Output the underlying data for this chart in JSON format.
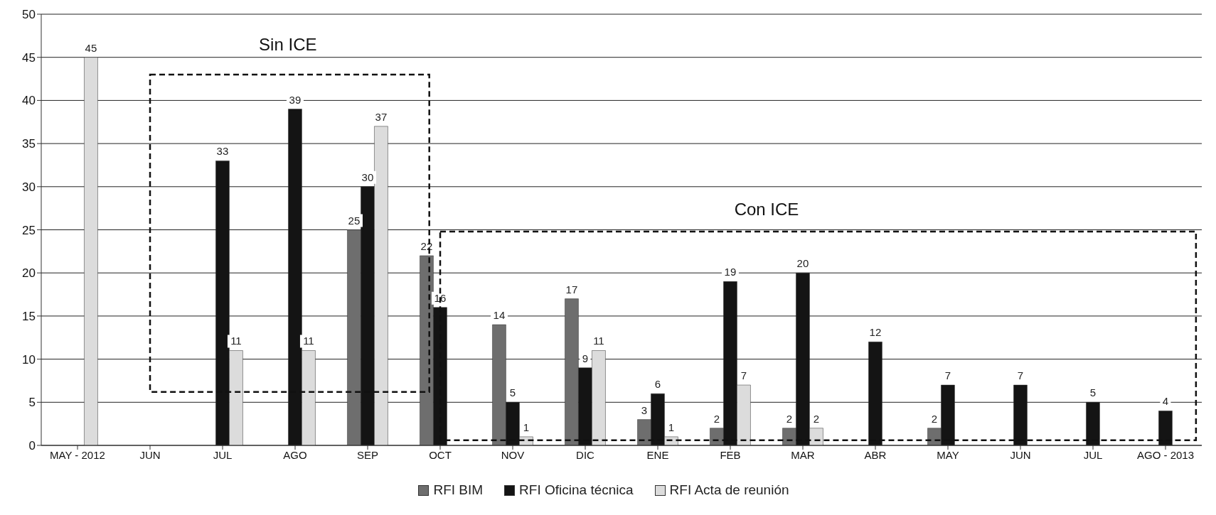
{
  "chart_data": {
    "type": "bar",
    "categories": [
      "MAY - 2012",
      "JUN",
      "JUL",
      "AGO",
      "SEP",
      "OCT",
      "NOV",
      "DIC",
      "ENE",
      "FEB",
      "MAR",
      "ABR",
      "MAY",
      "JUN",
      "JUL",
      "AGO - 2013"
    ],
    "series": [
      {
        "name": "RFI BIM",
        "color": "#6e6e6e",
        "values": [
          null,
          null,
          null,
          null,
          25,
          22,
          14,
          17,
          3,
          2,
          2,
          null,
          2,
          null,
          null,
          null
        ]
      },
      {
        "name": "RFI Oficina técnica",
        "color": "#141414",
        "values": [
          null,
          null,
          33,
          39,
          30,
          16,
          5,
          9,
          6,
          19,
          20,
          12,
          7,
          7,
          5,
          4
        ]
      },
      {
        "name": "RFI Acta de reunión",
        "color": "#dcdcdc",
        "values": [
          45,
          null,
          11,
          11,
          37,
          null,
          1,
          11,
          1,
          7,
          2,
          null,
          null,
          null,
          null,
          null
        ]
      }
    ],
    "ylim": [
      0,
      50
    ],
    "yticks": [
      0,
      5,
      10,
      15,
      20,
      25,
      30,
      35,
      40,
      45,
      50
    ],
    "grid": "y",
    "legend": "bottom",
    "data_labels": true,
    "annotations": [
      "Sin ICE",
      "Con ICE"
    ]
  }
}
